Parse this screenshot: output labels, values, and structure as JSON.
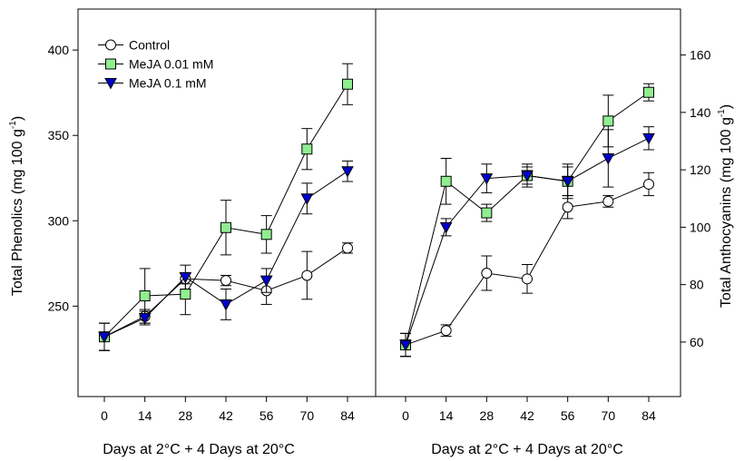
{
  "chart_data": [
    {
      "type": "line",
      "panel": "left",
      "xlabel": "Days at 2°C + 4 Days at 20°C",
      "ylabel": "Total Phenolics (mg  100 g",
      "ylabel_sup": "-1",
      "ylabel_close": ")",
      "x": [
        0,
        14,
        28,
        42,
        56,
        70,
        84
      ],
      "xticks": [
        "0",
        "14",
        "28",
        "42",
        "56",
        "70",
        "84"
      ],
      "ylim": [
        197,
        424
      ],
      "yticks": [
        "250",
        "300",
        "350",
        "400"
      ],
      "ytick_values": [
        250,
        300,
        350,
        400
      ],
      "grid": false,
      "legend_position": "top-left",
      "series": [
        {
          "name": "Control",
          "marker": "circle",
          "color": "#ffffff",
          "values": [
            232,
            244,
            266,
            265,
            259,
            268,
            284
          ],
          "errors": [
            8,
            4,
            3,
            3,
            8,
            14,
            3
          ]
        },
        {
          "name": "MeJA 0.01 mM",
          "marker": "square",
          "color": "#90ee90",
          "values": [
            232,
            256,
            257,
            296,
            292,
            342,
            380
          ],
          "errors": [
            8,
            16,
            12,
            16,
            11,
            12,
            12
          ]
        },
        {
          "name": "MeJA 0.1 mM",
          "marker": "triangle-down",
          "color": "#0000cd",
          "values": [
            232,
            243,
            267,
            251,
            265,
            313,
            329
          ],
          "errors": [
            8,
            4,
            7,
            9,
            7,
            9,
            6
          ]
        }
      ]
    },
    {
      "type": "line",
      "panel": "right",
      "xlabel": "Days at 2°C + 4 Days at 20°C",
      "ylabel": "Total Anthocyanins (mg  100 g",
      "ylabel_sup": "-1",
      "ylabel_close": ")",
      "x": [
        0,
        14,
        28,
        42,
        56,
        70,
        84
      ],
      "xticks": [
        "0",
        "14",
        "28",
        "42",
        "56",
        "70",
        "84"
      ],
      "ylim": [
        41,
        176
      ],
      "yticks": [
        "60",
        "80",
        "100",
        "120",
        "140",
        "160"
      ],
      "ytick_values": [
        60,
        80,
        100,
        120,
        140,
        160
      ],
      "grid": false,
      "series": [
        {
          "name": "Control",
          "marker": "circle",
          "color": "#ffffff",
          "values": [
            59,
            64,
            84,
            82,
            107,
            109,
            115
          ],
          "errors": [
            4,
            2,
            6,
            5,
            4,
            2,
            4
          ]
        },
        {
          "name": "MeJA 0.01 mM",
          "marker": "square",
          "color": "#90ee90",
          "values": [
            59,
            116,
            105,
            118,
            116,
            137,
            147
          ],
          "errors": [
            4,
            8,
            3,
            3,
            6,
            9,
            3
          ]
        },
        {
          "name": "MeJA 0.1 mM",
          "marker": "triangle-down",
          "color": "#0000cd",
          "values": [
            59,
            100,
            117,
            118,
            116,
            124,
            131
          ],
          "errors": [
            4,
            3,
            5,
            4,
            5,
            10,
            4
          ]
        }
      ]
    }
  ]
}
